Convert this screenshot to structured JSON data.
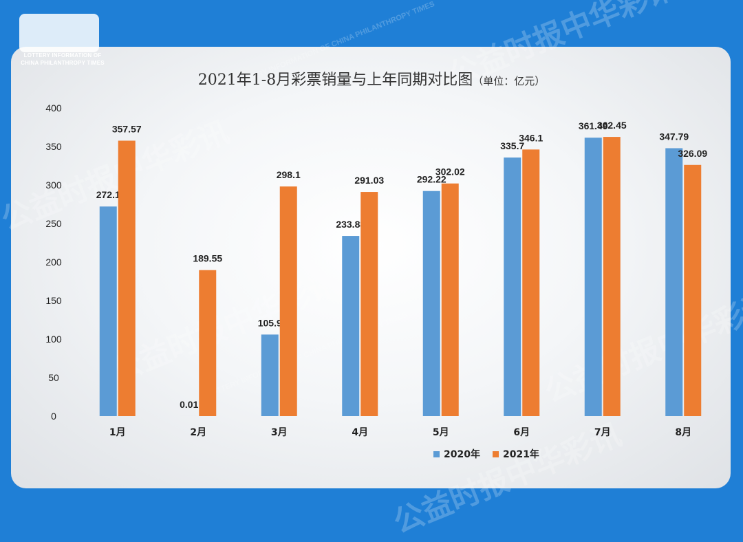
{
  "logo": {
    "line1": "LOTTERY INFORMATION OF",
    "line2": "CHINA PHILANTHROPY TIMES"
  },
  "watermark": {
    "text": "公益时报中华彩讯",
    "sub": "LOTTERY INFORMATION OF CHINA PHILANTHROPY TIMES"
  },
  "colors": {
    "series_2020": "#5b9bd5",
    "series_2021": "#ed7d31",
    "background": "#1f7fd6"
  },
  "chart_data": {
    "type": "bar",
    "title": "2021年1-8月彩票销量与上年同期对比图",
    "unit": "（单位：亿元）",
    "categories": [
      "1月",
      "2月",
      "3月",
      "4月",
      "5月",
      "6月",
      "7月",
      "8月"
    ],
    "series": [
      {
        "name": "2020年",
        "values": [
          272.1,
          0.01,
          105.9,
          233.88,
          292.22,
          335.7,
          361.49,
          347.79
        ]
      },
      {
        "name": "2021年",
        "values": [
          357.57,
          189.55,
          298.1,
          291.03,
          302.02,
          346.1,
          362.45,
          326.09
        ]
      }
    ],
    "value_labels": [
      [
        "272.1",
        "0.01",
        "105.9",
        "233.88",
        "292.22",
        "335.7",
        "361.49",
        "347.79"
      ],
      [
        "357.57",
        "189.55",
        "298.1",
        "291.03",
        "302.02",
        "346.1",
        "362.45",
        "326.09"
      ]
    ],
    "yticks": [
      "0",
      "50",
      "100",
      "150",
      "200",
      "250",
      "300",
      "350",
      "400"
    ],
    "ylim": [
      0,
      400
    ],
    "grid": false,
    "legend": "bottom-right"
  }
}
